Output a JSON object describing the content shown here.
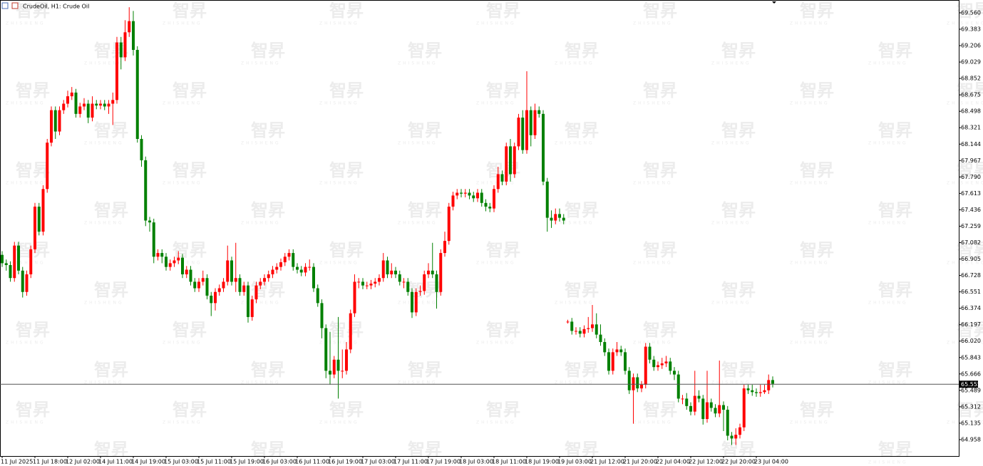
{
  "watermark": [
    "智昇",
    "ZHISHENG"
  ],
  "chart_data": {
    "type": "candlestick",
    "title": "CrudeOil, H1: Crude Oil",
    "up_color": "#ff0000",
    "down_color": "#008000",
    "ylim": [
      64.781,
      69.698
    ],
    "yticks": [
      {
        "value": 69.56,
        "label": "69.560"
      },
      69.383,
      69.206,
      69.029,
      68.852,
      68.675,
      68.498,
      68.321,
      68.144,
      67.967,
      {
        "value": 67.79,
        "label": "67.790"
      },
      67.613,
      67.436,
      67.259,
      67.082,
      66.905,
      66.728,
      66.551,
      66.374,
      66.197,
      {
        "value": 66.02,
        "label": "66.020"
      },
      65.843,
      65.666,
      65.489,
      65.312,
      65.135,
      64.958
    ],
    "last_price": 65.555,
    "categories": [
      "11 Jul 2025",
      null,
      null,
      null,
      null,
      null,
      null,
      null,
      "11 Jul 18:00",
      null,
      null,
      null,
      null,
      null,
      null,
      null,
      "12 Jul 02:00",
      null,
      null,
      null,
      null,
      null,
      null,
      null,
      "14 Jul 11:00",
      null,
      null,
      null,
      null,
      null,
      null,
      null,
      "14 Jul 19:00",
      null,
      null,
      null,
      null,
      null,
      null,
      null,
      "15 Jul 03:00",
      null,
      null,
      null,
      null,
      null,
      null,
      null,
      "15 Jul 11:00",
      null,
      null,
      null,
      null,
      null,
      null,
      null,
      "15 Jul 19:00",
      null,
      null,
      null,
      null,
      null,
      null,
      null,
      "16 Jul 03:00",
      null,
      null,
      null,
      null,
      null,
      null,
      null,
      "16 Jul 11:00",
      null,
      null,
      null,
      null,
      null,
      null,
      null,
      "16 Jul 19:00",
      null,
      null,
      null,
      null,
      null,
      null,
      null,
      "17 Jul 03:00",
      null,
      null,
      null,
      null,
      null,
      null,
      null,
      "17 Jul 11:00",
      null,
      null,
      null,
      null,
      null,
      null,
      null,
      "17 Jul 19:00",
      null,
      null,
      null,
      null,
      null,
      null,
      null,
      "18 Jul 03:00",
      null,
      null,
      null,
      null,
      null,
      null,
      null,
      "18 Jul 11:00",
      null,
      null,
      null,
      null,
      null,
      null,
      null,
      "18 Jul 19:00",
      null,
      null,
      null,
      null,
      null,
      null,
      null,
      "19 Jul 03:00",
      null,
      null,
      null,
      null,
      null,
      null,
      null,
      "21 Jul 12:00",
      null,
      null,
      null,
      null,
      null,
      null,
      null,
      "21 Jul 20:00",
      null,
      null,
      null,
      null,
      null,
      null,
      null,
      "22 Jul 04:00",
      null,
      null,
      null,
      null,
      null,
      null,
      null,
      "22 Jul 12:00",
      null,
      null,
      null,
      null,
      null,
      null,
      null,
      "22 Jul 20:00",
      null,
      null,
      null,
      null,
      null,
      null,
      null,
      "23 Jul 04:00",
      null,
      null,
      null,
      null
    ],
    "open": [
      66.95,
      66.86,
      66.84,
      66.7,
      67.05,
      66.78,
      66.55,
      66.74,
      67.01,
      67.47,
      67.2,
      67.66,
      68.16,
      68.51,
      68.28,
      68.51,
      68.58,
      68.66,
      68.7,
      68.47,
      68.55,
      68.58,
      68.43,
      68.58,
      68.56,
      68.58,
      68.55,
      68.58,
      68.62,
      69.24,
      69.08,
      69.35,
      69.47,
      69.16,
      68.2,
      67.97,
      67.32,
      67.3,
      66.93,
      66.97,
      66.93,
      66.82,
      66.86,
      66.89,
      66.92,
      66.74,
      66.79,
      66.66,
      66.59,
      66.66,
      66.7,
      66.51,
      66.43,
      66.55,
      66.59,
      66.66,
      66.89,
      66.66,
      66.7,
      66.55,
      66.62,
      66.28,
      66.47,
      66.62,
      66.66,
      66.7,
      66.74,
      66.79,
      66.82,
      66.87,
      66.93,
      66.97,
      66.82,
      66.79,
      66.76,
      66.82,
      66.82,
      66.59,
      66.43,
      66.16,
      65.7,
      65.66,
      65.82,
      65.7,
      65.7,
      65.93,
      66.32,
      66.66,
      66.66,
      66.62,
      66.62,
      66.64,
      66.66,
      66.7,
      66.89,
      66.74,
      66.78,
      66.74,
      66.66,
      66.66,
      66.55,
      66.33,
      66.55,
      66.56,
      66.74,
      66.78,
      66.74,
      66.55,
      66.97,
      67.1,
      67.47,
      67.59,
      67.62,
      67.61,
      67.62,
      67.59,
      67.56,
      67.62,
      67.51,
      67.47,
      67.45,
      67.66,
      67.82,
      67.74,
      68.12,
      67.82,
      68.12,
      68.43,
      68.08,
      68.51,
      68.24,
      68.51,
      68.47,
      67.74,
      67.35,
      67.32,
      67.39,
      67.35,
      66.23,
      66.23,
      66.13,
      66.13,
      66.1,
      66.15,
      66.16,
      66.2,
      66.09,
      66.01,
      65.9,
      65.7,
      65.9,
      65.93,
      65.9,
      65.7,
      65.49,
      65.63,
      65.51,
      65.55,
      65.96,
      65.82,
      65.74,
      65.76,
      65.78,
      65.8,
      65.7,
      65.66,
      65.4,
      65.4,
      65.32,
      65.26,
      65.43,
      65.4,
      65.18,
      65.36,
      65.3,
      65.24,
      65.33,
      65.28,
      65.0,
      64.97,
      65.01,
      65.09,
      65.51,
      65.49,
      65.47,
      65.46,
      65.47,
      65.49,
      65.6
    ],
    "high": [
      66.99,
      66.9,
      66.88,
      67.09,
      67.09,
      66.82,
      66.78,
      67.05,
      67.51,
      67.51,
      67.7,
      68.2,
      68.55,
      68.55,
      68.55,
      68.62,
      68.72,
      68.76,
      68.74,
      68.59,
      68.64,
      68.62,
      68.66,
      68.62,
      68.62,
      68.62,
      68.62,
      68.7,
      69.3,
      69.3,
      69.48,
      69.62,
      69.58,
      69.2,
      68.24,
      68.01,
      67.36,
      67.34,
      67.01,
      67.01,
      66.97,
      66.9,
      66.93,
      66.99,
      66.96,
      66.83,
      66.83,
      66.7,
      66.7,
      66.78,
      66.74,
      66.55,
      66.59,
      66.63,
      66.7,
      67.05,
      66.93,
      67.08,
      66.74,
      66.66,
      66.66,
      66.51,
      66.66,
      66.7,
      66.74,
      66.78,
      66.83,
      66.86,
      66.91,
      66.97,
      67.01,
      67.01,
      66.86,
      66.83,
      66.86,
      66.9,
      66.86,
      66.63,
      66.47,
      66.2,
      66.12,
      65.86,
      66.28,
      65.93,
      66.01,
      66.36,
      66.74,
      66.7,
      66.7,
      66.66,
      66.68,
      66.7,
      66.74,
      66.97,
      66.93,
      66.86,
      66.82,
      66.78,
      66.7,
      66.7,
      66.59,
      66.59,
      66.62,
      66.78,
      66.86,
      67.08,
      66.78,
      67.01,
      67.2,
      67.51,
      67.63,
      67.66,
      67.66,
      67.66,
      67.66,
      67.63,
      67.66,
      67.66,
      67.55,
      67.51,
      67.7,
      67.9,
      67.86,
      68.16,
      68.2,
      68.16,
      68.47,
      68.51,
      68.93,
      68.55,
      68.58,
      68.55,
      68.51,
      67.78,
      67.43,
      67.45,
      67.45,
      67.39,
      66.25,
      66.27,
      66.17,
      66.17,
      66.19,
      66.28,
      66.41,
      66.32,
      66.2,
      66.05,
      65.94,
      65.94,
      66.01,
      65.97,
      65.94,
      65.74,
      65.67,
      65.67,
      65.59,
      66.0,
      66.0,
      65.86,
      65.8,
      65.84,
      65.86,
      65.84,
      65.74,
      65.7,
      65.44,
      65.46,
      65.36,
      65.7,
      65.49,
      65.44,
      65.7,
      65.4,
      65.34,
      65.81,
      65.37,
      65.32,
      65.04,
      65.08,
      65.13,
      65.55,
      65.55,
      65.55,
      65.51,
      65.55,
      65.55,
      65.66,
      65.64
    ],
    "low": [
      66.82,
      66.78,
      66.66,
      66.66,
      66.74,
      66.49,
      66.51,
      66.7,
      66.97,
      67.16,
      67.16,
      67.62,
      68.12,
      68.2,
      68.24,
      68.47,
      68.54,
      68.62,
      68.43,
      68.43,
      68.51,
      68.37,
      68.39,
      68.52,
      68.52,
      68.51,
      68.47,
      68.35,
      68.58,
      68.95,
      69.04,
      69.3,
      69.1,
      68.16,
      67.9,
      67.26,
      67.2,
      66.86,
      66.89,
      66.86,
      66.78,
      66.78,
      66.82,
      66.85,
      66.7,
      66.7,
      66.62,
      66.55,
      66.55,
      66.62,
      66.47,
      66.29,
      66.35,
      66.51,
      66.55,
      66.62,
      66.62,
      66.55,
      66.51,
      66.51,
      66.22,
      66.24,
      66.43,
      66.58,
      66.62,
      66.66,
      66.7,
      66.75,
      66.78,
      66.83,
      66.89,
      66.78,
      66.75,
      66.72,
      66.72,
      66.78,
      66.55,
      66.39,
      66.05,
      65.62,
      65.55,
      65.62,
      65.4,
      65.62,
      65.66,
      65.89,
      66.28,
      66.59,
      66.58,
      66.58,
      66.58,
      66.6,
      66.62,
      66.66,
      66.7,
      66.7,
      66.7,
      66.62,
      66.59,
      66.51,
      66.27,
      66.29,
      66.51,
      66.52,
      66.7,
      66.7,
      66.37,
      66.51,
      66.93,
      67.06,
      67.43,
      67.55,
      67.57,
      67.57,
      67.55,
      67.52,
      67.52,
      67.47,
      67.42,
      67.41,
      67.41,
      67.62,
      67.7,
      67.7,
      67.74,
      67.78,
      68.08,
      68.04,
      68.04,
      68.12,
      68.2,
      68.43,
      67.7,
      67.2,
      67.24,
      67.28,
      67.31,
      67.28,
      66.21,
      66.09,
      66.09,
      66.06,
      66.06,
      66.11,
      66.12,
      66.05,
      65.97,
      65.86,
      65.66,
      65.66,
      65.86,
      65.86,
      65.66,
      65.45,
      65.13,
      65.47,
      65.47,
      65.51,
      65.78,
      65.7,
      65.7,
      65.72,
      65.74,
      65.66,
      65.6,
      65.36,
      65.34,
      65.28,
      65.22,
      65.22,
      65.36,
      65.12,
      65.14,
      65.26,
      65.2,
      65.2,
      65.05,
      64.95,
      64.9,
      64.9,
      64.97,
      65.05,
      65.45,
      65.43,
      65.42,
      65.42,
      65.45,
      65.45,
      65.52
    ],
    "close": [
      66.86,
      66.84,
      66.7,
      67.05,
      66.78,
      66.55,
      66.74,
      67.01,
      67.47,
      67.2,
      67.66,
      68.16,
      68.51,
      68.28,
      68.51,
      68.58,
      68.66,
      68.7,
      68.47,
      68.55,
      68.58,
      68.43,
      68.58,
      68.56,
      68.58,
      68.55,
      68.58,
      68.62,
      69.24,
      69.08,
      69.35,
      69.47,
      69.16,
      68.2,
      67.97,
      67.32,
      67.3,
      66.93,
      66.97,
      66.93,
      66.82,
      66.86,
      66.89,
      66.92,
      66.74,
      66.79,
      66.66,
      66.59,
      66.66,
      66.7,
      66.51,
      66.43,
      66.55,
      66.59,
      66.66,
      66.89,
      66.66,
      66.7,
      66.55,
      66.62,
      66.28,
      66.47,
      66.62,
      66.66,
      66.7,
      66.74,
      66.79,
      66.82,
      66.87,
      66.93,
      66.97,
      66.82,
      66.79,
      66.76,
      66.82,
      66.82,
      66.59,
      66.43,
      66.16,
      65.7,
      65.66,
      65.82,
      65.7,
      65.7,
      65.93,
      66.32,
      66.66,
      66.66,
      66.62,
      66.62,
      66.64,
      66.66,
      66.7,
      66.89,
      66.74,
      66.78,
      66.74,
      66.66,
      66.66,
      66.55,
      66.33,
      66.55,
      66.56,
      66.74,
      66.78,
      66.74,
      66.55,
      66.97,
      67.1,
      67.47,
      67.59,
      67.62,
      67.61,
      67.62,
      67.59,
      67.56,
      67.62,
      67.51,
      67.47,
      67.45,
      67.66,
      67.82,
      67.74,
      68.12,
      67.82,
      68.12,
      68.43,
      68.08,
      68.51,
      68.24,
      68.51,
      68.47,
      67.74,
      67.35,
      67.32,
      67.39,
      67.35,
      67.32,
      66.23,
      66.13,
      66.13,
      66.1,
      66.15,
      66.16,
      66.2,
      66.09,
      66.01,
      65.9,
      65.7,
      65.9,
      65.93,
      65.9,
      65.7,
      65.49,
      65.63,
      65.51,
      65.55,
      65.96,
      65.82,
      65.74,
      65.76,
      65.78,
      65.8,
      65.7,
      65.66,
      65.4,
      65.4,
      65.32,
      65.26,
      65.43,
      65.4,
      65.18,
      65.36,
      65.3,
      65.24,
      65.33,
      65.28,
      65.0,
      64.97,
      65.01,
      65.09,
      65.51,
      65.49,
      65.47,
      65.46,
      65.47,
      65.49,
      65.6,
      65.56
    ]
  }
}
